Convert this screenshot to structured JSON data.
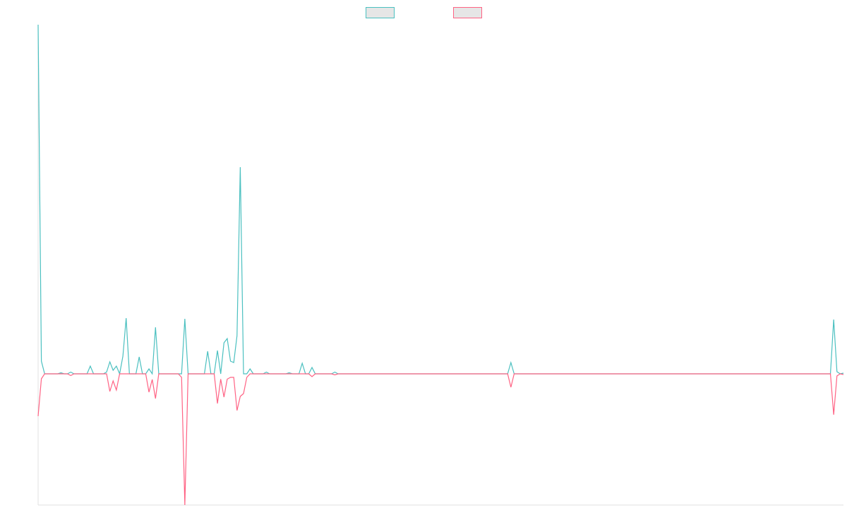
{
  "chart_data": {
    "type": "line",
    "legend_position": "top",
    "grid": false,
    "categories": [
      null,
      null,
      null,
      null,
      null,
      null,
      null,
      null,
      null,
      null,
      null,
      null,
      null,
      null,
      null,
      null,
      null,
      null,
      null,
      null,
      null,
      null,
      null,
      null,
      null,
      null,
      null,
      null,
      null,
      null,
      null,
      null,
      null,
      null,
      null,
      null,
      null,
      null,
      null,
      null,
      null,
      null,
      null,
      null,
      null,
      null,
      null,
      null,
      null,
      null,
      null,
      null,
      null,
      null,
      null,
      null,
      null,
      null,
      null,
      null,
      null,
      null,
      null,
      null,
      null,
      null,
      null,
      null,
      null,
      null,
      null,
      null,
      null,
      null,
      null,
      null,
      null,
      null,
      null,
      null,
      null,
      null,
      null,
      null,
      null,
      null,
      null,
      null,
      null,
      null,
      null,
      null,
      null,
      null,
      null,
      null,
      null,
      null,
      null,
      null,
      null,
      null,
      null,
      null,
      null,
      null,
      null,
      null,
      null,
      null,
      null,
      null,
      null,
      null,
      null,
      null,
      null,
      null,
      null,
      null,
      null,
      null,
      null,
      null,
      null,
      null,
      null,
      null,
      null,
      null,
      null,
      null,
      null,
      null,
      null,
      null,
      null,
      null,
      null,
      null,
      null,
      null,
      null,
      null,
      null,
      null,
      null,
      null,
      null,
      null,
      null,
      null,
      null,
      null,
      null,
      null,
      null,
      null,
      null,
      null,
      null,
      null,
      null,
      null,
      null,
      null,
      null,
      null,
      null,
      null,
      null,
      null,
      null,
      null,
      null,
      null,
      null,
      null,
      null,
      null,
      null,
      null,
      null,
      null,
      null,
      null,
      null,
      null,
      null,
      null,
      null,
      null,
      null,
      null,
      null,
      null,
      null,
      null,
      null,
      null,
      null,
      null,
      null,
      null,
      null,
      null,
      null,
      null,
      null,
      null,
      null,
      null,
      null,
      null,
      null,
      null,
      null,
      null,
      null,
      null,
      null,
      null,
      null,
      null,
      null,
      null,
      null,
      null,
      null,
      null,
      null,
      null,
      null,
      null,
      null,
      null,
      null,
      null,
      null,
      null,
      null,
      null,
      null,
      null,
      null,
      null,
      null,
      null
    ],
    "ylim": [
      -37.2,
      99
    ],
    "series": [
      {
        "color": "#4bc0c0",
        "values": [
          99,
          3.6,
          0,
          0,
          0,
          0,
          0,
          0.3,
          0,
          0,
          0.5,
          0,
          0,
          0,
          0,
          0,
          2.2,
          0,
          0,
          0,
          0,
          0.5,
          3.4,
          1,
          2.2,
          0,
          5,
          15.8,
          0,
          0,
          0,
          4.8,
          0,
          0,
          1.4,
          0,
          13.2,
          0,
          0,
          0,
          0,
          0,
          0,
          0,
          0,
          15.6,
          0,
          0,
          0,
          0,
          0,
          0,
          6.4,
          0,
          0,
          6.6,
          0,
          8.8,
          10,
          3.6,
          3.2,
          10.8,
          58.6,
          0,
          0,
          1.4,
          0,
          0,
          0,
          0,
          0.5,
          0,
          0,
          0,
          0,
          0,
          0,
          0.3,
          0,
          0,
          0,
          3,
          0,
          0,
          1.8,
          0,
          0,
          0,
          0,
          0,
          0,
          0.5,
          0,
          0,
          0,
          0,
          0,
          0,
          0,
          0,
          0,
          0,
          0,
          0,
          0,
          0,
          0,
          0,
          0,
          0,
          0,
          0,
          0,
          0,
          0,
          0,
          0,
          0,
          0,
          0,
          0,
          0,
          0,
          0,
          0,
          0,
          0,
          0,
          0,
          0,
          0,
          0,
          0,
          0,
          0,
          0,
          0,
          0,
          0,
          0,
          0,
          0,
          0,
          0,
          0,
          3.2,
          0,
          0,
          0,
          0,
          0,
          0,
          0,
          0,
          0,
          0,
          0,
          0,
          0,
          0,
          0,
          0,
          0,
          0,
          0,
          0,
          0,
          0,
          0,
          0,
          0,
          0,
          0,
          0,
          0,
          0,
          0,
          0,
          0,
          0,
          0,
          0,
          0,
          0,
          0,
          0,
          0,
          0,
          0,
          0,
          0,
          0,
          0,
          0,
          0,
          0,
          0,
          0,
          0,
          0,
          0,
          0,
          0,
          0,
          0,
          0,
          0,
          0,
          0,
          0,
          0,
          0,
          0,
          0,
          0,
          0,
          0,
          0,
          0,
          0,
          0,
          0,
          0,
          0,
          0,
          0,
          0,
          0,
          0,
          0,
          0,
          0,
          0,
          0,
          0,
          0,
          0,
          0,
          0,
          0,
          0,
          0,
          0,
          0,
          15.4,
          0.6,
          0,
          0.2
        ]
      },
      {
        "color": "#ff6384",
        "values": [
          -12,
          -1.4,
          0,
          0,
          0,
          0,
          0,
          0,
          0,
          0,
          -0.5,
          0,
          0,
          0,
          0,
          0,
          0,
          0,
          0,
          0,
          0,
          0,
          -5,
          -2,
          -4.6,
          0,
          0,
          0,
          0,
          0,
          0,
          0,
          0,
          0,
          -5.2,
          -1.6,
          -7,
          0,
          0,
          0,
          0,
          0,
          0,
          0,
          -1,
          -37.2,
          0,
          0,
          0,
          0,
          0,
          0,
          0,
          0,
          0,
          -8.4,
          -1.5,
          -6.6,
          -1.5,
          -1,
          -1,
          -10.4,
          -6.4,
          -5.6,
          -1,
          0,
          0,
          0,
          0,
          0,
          0,
          0,
          0,
          0,
          0,
          0,
          0,
          0,
          0,
          0,
          0,
          0,
          0,
          0,
          -0.8,
          0,
          0,
          0,
          0,
          0,
          0,
          -0.3,
          0,
          0,
          0,
          0,
          0,
          0,
          0,
          0,
          0,
          0,
          0,
          0,
          0,
          0,
          0,
          0,
          0,
          0,
          0,
          0,
          0,
          0,
          0,
          0,
          0,
          0,
          0,
          0,
          0,
          0,
          0,
          0,
          0,
          0,
          0,
          0,
          0,
          0,
          0,
          0,
          0,
          0,
          0,
          0,
          0,
          0,
          0,
          0,
          0,
          0,
          0,
          0,
          0,
          -3.8,
          0,
          0,
          0,
          0,
          0,
          0,
          0,
          0,
          0,
          0,
          0,
          0,
          0,
          0,
          0,
          0,
          0,
          0,
          0,
          0,
          0,
          0,
          0,
          0,
          0,
          0,
          0,
          0,
          0,
          0,
          0,
          0,
          0,
          0,
          0,
          0,
          0,
          0,
          0,
          0,
          0,
          0,
          0,
          0,
          0,
          0,
          0,
          0,
          0,
          0,
          0,
          0,
          0,
          0,
          0,
          0,
          0,
          0,
          0,
          0,
          0,
          0,
          0,
          0,
          0,
          0,
          0,
          0,
          0,
          0,
          0,
          0,
          0,
          0,
          0,
          0,
          0,
          0,
          0,
          0,
          0,
          0,
          0,
          0,
          0,
          0,
          0,
          0,
          0,
          0,
          0,
          0,
          0,
          0,
          0,
          0,
          0,
          0,
          -11.6,
          -0.6,
          0,
          -0.2
        ]
      }
    ]
  }
}
